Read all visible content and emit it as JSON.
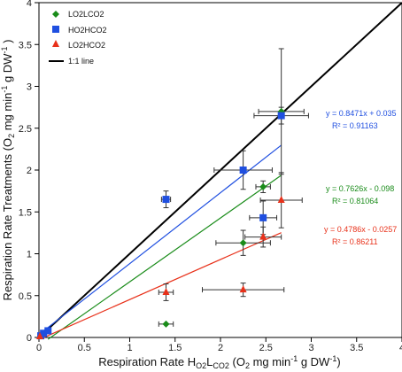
{
  "chart_data": {
    "type": "scatter",
    "xlim": [
      0,
      4
    ],
    "ylim": [
      0,
      4
    ],
    "x_ticks": [
      "0",
      "0.5",
      "1",
      "1.5",
      "2",
      "2.5",
      "3",
      "3.5",
      "4"
    ],
    "y_ticks": [
      "0",
      "0.5",
      "1",
      "1.5",
      "2",
      "2.5",
      "3",
      "3.5",
      "4"
    ],
    "xlabel": {
      "prefix": "Respiration Rate H",
      "sub1": "O2",
      "mid": "L",
      "sub2": "CO2",
      "mid2": " (O",
      "sub3": "2",
      "suffix": " mg min",
      "sup1": "-1",
      "suffix2": " g DW",
      "sup2": "-1",
      "end": ")"
    },
    "ylabel": {
      "prefix": "Respiration Rate Treatments (O",
      "sub1": "2",
      "mid": " mg min",
      "sup1": "-1",
      "mid2": " g DW",
      "sup2": "-1",
      "end": " )"
    },
    "legend_position": "top-left",
    "grid": false,
    "series": [
      {
        "name": "LO2LCO2",
        "marker": "diamond",
        "color": "#1a8c1a",
        "points": [
          {
            "x": 0.02,
            "y": 0.02,
            "xerr": 0,
            "yerr": 0
          },
          {
            "x": 1.4,
            "y": 0.16,
            "xerr": 0.08,
            "yerr": 0
          },
          {
            "x": 2.25,
            "y": 1.13,
            "xerr": 0.3,
            "yerr": 0.15
          },
          {
            "x": 2.47,
            "y": 1.8,
            "xerr": 0.08,
            "yerr": 0.07
          },
          {
            "x": 2.67,
            "y": 2.7,
            "xerr": 0.25,
            "yerr": 0.75
          }
        ]
      },
      {
        "name": "HO2HCO2",
        "marker": "square",
        "color": "#1f4fe0",
        "points": [
          {
            "x": 0.02,
            "y": 0.02,
            "xerr": 0,
            "yerr": 0
          },
          {
            "x": 0.05,
            "y": 0.05,
            "xerr": 0,
            "yerr": 0
          },
          {
            "x": 0.1,
            "y": 0.08,
            "xerr": 0,
            "yerr": 0
          },
          {
            "x": 1.4,
            "y": 1.65,
            "xerr": 0.05,
            "yerr": 0.1
          },
          {
            "x": 2.25,
            "y": 2.0,
            "xerr": 0.32,
            "yerr": 0.23
          },
          {
            "x": 2.47,
            "y": 1.43,
            "xerr": 0.15,
            "yerr": 0.2
          },
          {
            "x": 2.67,
            "y": 2.65,
            "xerr": 0.3,
            "yerr": 0.1
          }
        ]
      },
      {
        "name": "LO2HCO2",
        "marker": "triangle",
        "color": "#e8311a",
        "points": [
          {
            "x": 0.01,
            "y": 0.01,
            "xerr": 0,
            "yerr": 0
          },
          {
            "x": 1.4,
            "y": 0.54,
            "xerr": 0.08,
            "yerr": 0.1
          },
          {
            "x": 2.25,
            "y": 0.57,
            "xerr": 0.45,
            "yerr": 0.08
          },
          {
            "x": 2.47,
            "y": 1.2,
            "xerr": 0.2,
            "yerr": 0.12
          },
          {
            "x": 2.67,
            "y": 1.64,
            "xerr": 0.23,
            "yerr": 0.33
          }
        ]
      }
    ],
    "reference_line": {
      "name": "1:1 line",
      "color": "#000000",
      "x": [
        0,
        4
      ],
      "y": [
        0,
        4
      ]
    },
    "trendlines": [
      {
        "series": "HO2HCO2",
        "color": "#1f4fe0",
        "slope": 0.8471,
        "intercept": 0.035,
        "x_range": [
          0,
          2.67
        ],
        "equation": "y = 0.8471x + 0.035",
        "r2": "R² = 0.91163"
      },
      {
        "series": "LO2LCO2",
        "color": "#1a8c1a",
        "slope": 0.7626,
        "intercept": -0.098,
        "x_range": [
          0.1,
          2.67
        ],
        "equation": "y = 0.7626x - 0.098",
        "r2": "R² = 0.81064"
      },
      {
        "series": "LO2HCO2",
        "color": "#e8311a",
        "slope": 0.4786,
        "intercept": -0.0257,
        "x_range": [
          0.05,
          2.67
        ],
        "equation": "y = 0.4786x - 0.0257",
        "r2": "R² = 0.86211"
      }
    ]
  }
}
